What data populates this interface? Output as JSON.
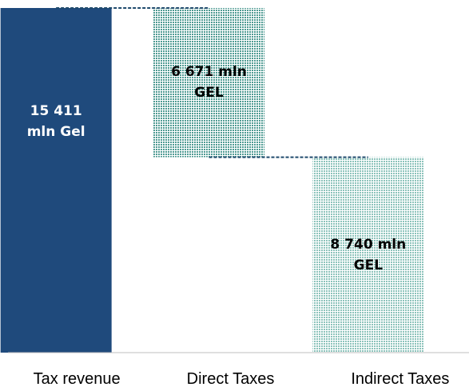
{
  "chart_data": {
    "type": "waterfall",
    "categories": [
      "Tax revenue",
      "Direct Taxes",
      "Indirect Taxes"
    ],
    "values": [
      15411,
      6671,
      8740
    ],
    "value_labels": [
      "15 411 mln Gel",
      "6 671 mln GEL",
      "8 740 mln GEL"
    ],
    "colors": [
      "#1f4a7c",
      "#4f9b93",
      "#8cc3bb"
    ]
  }
}
